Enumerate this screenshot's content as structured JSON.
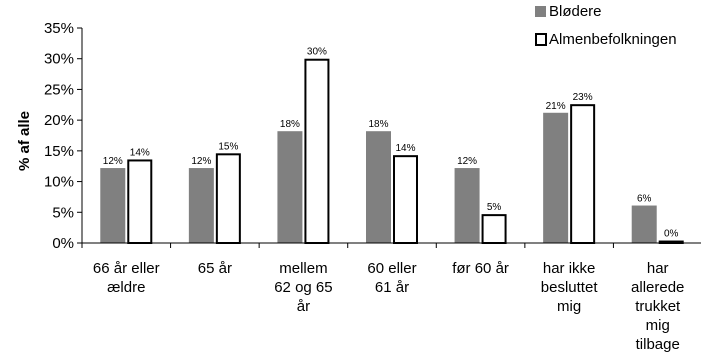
{
  "chart_data": {
    "type": "bar",
    "ylabel": "% af alle",
    "xlabel": "",
    "ylim": [
      0,
      35
    ],
    "yticks": [
      "0%",
      "5%",
      "10%",
      "15%",
      "20%",
      "25%",
      "30%",
      "35%"
    ],
    "ytick_values": [
      0,
      5,
      10,
      15,
      20,
      25,
      30,
      35
    ],
    "legend_position": "top-right",
    "grid": false,
    "categories": [
      [
        "66 år eller",
        "ældre"
      ],
      [
        "65 år"
      ],
      [
        "mellem",
        "62 og 65",
        "år"
      ],
      [
        "60 eller",
        "61 år"
      ],
      [
        "før 60 år"
      ],
      [
        "har ikke",
        "besluttet",
        "mig"
      ],
      [
        "har",
        "allerede",
        "trukket",
        "mig",
        "tilbage"
      ]
    ],
    "series": [
      {
        "name": "Blødere",
        "color": "#808080",
        "values": [
          12.2,
          12.2,
          18.2,
          18.2,
          12.2,
          21.2,
          6.1
        ],
        "labels": [
          "12%",
          "12%",
          "18%",
          "18%",
          "12%",
          "21%",
          "6%"
        ]
      },
      {
        "name": "Almenbefolkningen",
        "color": "#ffffff",
        "values": [
          13.6,
          14.6,
          30.0,
          14.3,
          4.7,
          22.6,
          0.4
        ],
        "labels": [
          "14%",
          "15%",
          "30%",
          "14%",
          "5%",
          "23%",
          "0%"
        ]
      }
    ]
  }
}
